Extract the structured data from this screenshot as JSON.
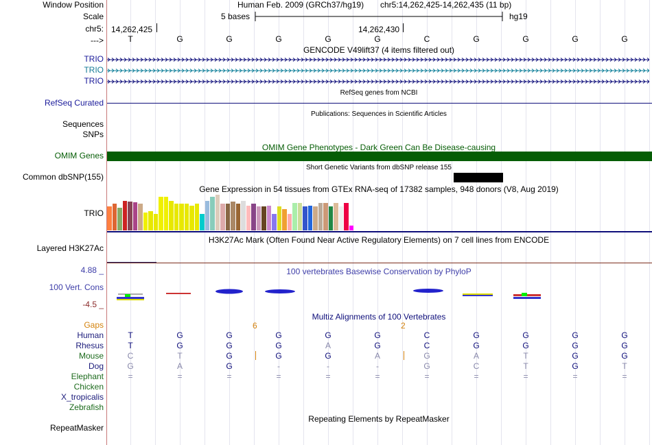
{
  "labels": {
    "window_position": "Window Position",
    "scale": "Scale",
    "chrom": "chr5:",
    "strand": "--->",
    "trio1": "TRIO",
    "trio2": "TRIO",
    "trio3": "TRIO",
    "refseq": "RefSeq Curated",
    "sequences": "Sequences",
    "snps": "SNPs",
    "omim": "OMIM Genes",
    "dbsnp": "Common dbSNP(155)",
    "gtex_trio": "TRIO",
    "h3k27ac": "Layered H3K27Ac",
    "phylop_max": "4.88 _",
    "vert_cons": "100 Vert. Cons",
    "phylop_min": "-4.5 _",
    "gaps": "Gaps",
    "species": [
      "Human",
      "Rhesus",
      "Mouse",
      "Dog",
      "Elephant",
      "Chicken",
      "X_tropicalis",
      "Zebrafish"
    ],
    "repeatmasker": "RepeatMasker"
  },
  "ruler": {
    "assembly": "Human Feb. 2009 (GRCh37/hg19)",
    "position": "chr5:14,262,425-14,262,435 (11 bp)",
    "scale_text": "5 bases",
    "scale_assembly": "hg19",
    "coord_start": "14,262,425",
    "coord_mid": "14,262,430"
  },
  "sequence": [
    "T",
    "G",
    "G",
    "G",
    "G",
    "G",
    "C",
    "G",
    "G",
    "G",
    "G"
  ],
  "titles": {
    "gencode": "GENCODE V49lift37 (4 items filtered out)",
    "refseq": "RefSeq genes from NCBI",
    "publications": "Publications: Sequences in Scientific Articles",
    "omim": "OMIM Gene Phenotypes - Dark Green Can Be Disease-causing",
    "dbsnp": "Short Genetic Variants from dbSNP release 155",
    "gtex": "Gene Expression in 54 tissues from GTEx RNA-seq of 17382 samples, 948 donors (V8, Aug 2019)",
    "h3k27ac": "H3K27Ac Mark (Often Found Near Active Regulatory Elements) on 7 cell lines from ENCODE",
    "phylop": "100 vertebrates Basewise Conservation by PhyloP",
    "multiz": "Multiz Alignments of 100 Vertebrates",
    "repeatmasker": "Repeating Elements by RepeatMasker"
  },
  "gaps": [
    "6",
    "2"
  ],
  "alignment": {
    "Human": [
      "T",
      "G",
      "G",
      "G",
      "G",
      "G",
      "C",
      "G",
      "G",
      "G",
      "G"
    ],
    "Rhesus": [
      "T",
      "G",
      "G",
      "G",
      "A",
      "G",
      "C",
      "G",
      "G",
      "G",
      "G"
    ],
    "Mouse": [
      "C",
      "T",
      "G",
      "G",
      "G",
      "A",
      "G",
      "A",
      "T",
      "G",
      "G"
    ],
    "Dog": [
      "G",
      "A",
      "G",
      "-",
      "-",
      "-",
      "G",
      "C",
      "T",
      "G",
      "T"
    ],
    "Elephant": [
      "=",
      "=",
      "=",
      "=",
      "=",
      "=",
      "=",
      "=",
      "=",
      "=",
      "="
    ]
  },
  "gtex_values": [
    40,
    45,
    38,
    50,
    48,
    47,
    45,
    30,
    32,
    28,
    56,
    56,
    50,
    45,
    45,
    45,
    42,
    45,
    28,
    50,
    56,
    60,
    45,
    45,
    48,
    45,
    50,
    42,
    45,
    40,
    40,
    42,
    28,
    40,
    36,
    28,
    46,
    46,
    40,
    42,
    40,
    46,
    46,
    40,
    46,
    40,
    46,
    8
  ],
  "gtex_colors": [
    "#ff8040",
    "#dd6633",
    "#88aa66",
    "#cc2222",
    "#884455",
    "#aa4488",
    "#ccaa88",
    "#f0f000",
    "#e8e800",
    "#e8e800",
    "#f0f000",
    "#f0f000",
    "#e8e800",
    "#e8e800",
    "#e8e800",
    "#e8e800",
    "#e8e800",
    "#e8e800",
    "#00cccc",
    "#99bbdd",
    "#88ccbb",
    "#ddccbb",
    "#ddaaaa",
    "#886644",
    "#aa8866",
    "#996633",
    "#dddddd",
    "#ffbbbb",
    "#884488",
    "#cc99bb",
    "#664422",
    "#cc88cc",
    "#8877ee",
    "#dddd22",
    "#f0a030",
    "#ffaaaa",
    "#aaeeaa",
    "#ccdd99",
    "#3355cc",
    "#2266dd",
    "#ccaa88",
    "#bbaa99",
    "#cc9977",
    "#228844",
    "#ddbb99",
    "#eeeeee",
    "#ee0044",
    "#ff00ff"
  ],
  "colors": {
    "gene_blue": "#0d0d7a",
    "gene_cyan": "#0f7f9a",
    "omim_green": "#055d05",
    "phylop_text": "#3d3da8",
    "gaps_orange": "#d4820c",
    "divider": "#c87878"
  }
}
